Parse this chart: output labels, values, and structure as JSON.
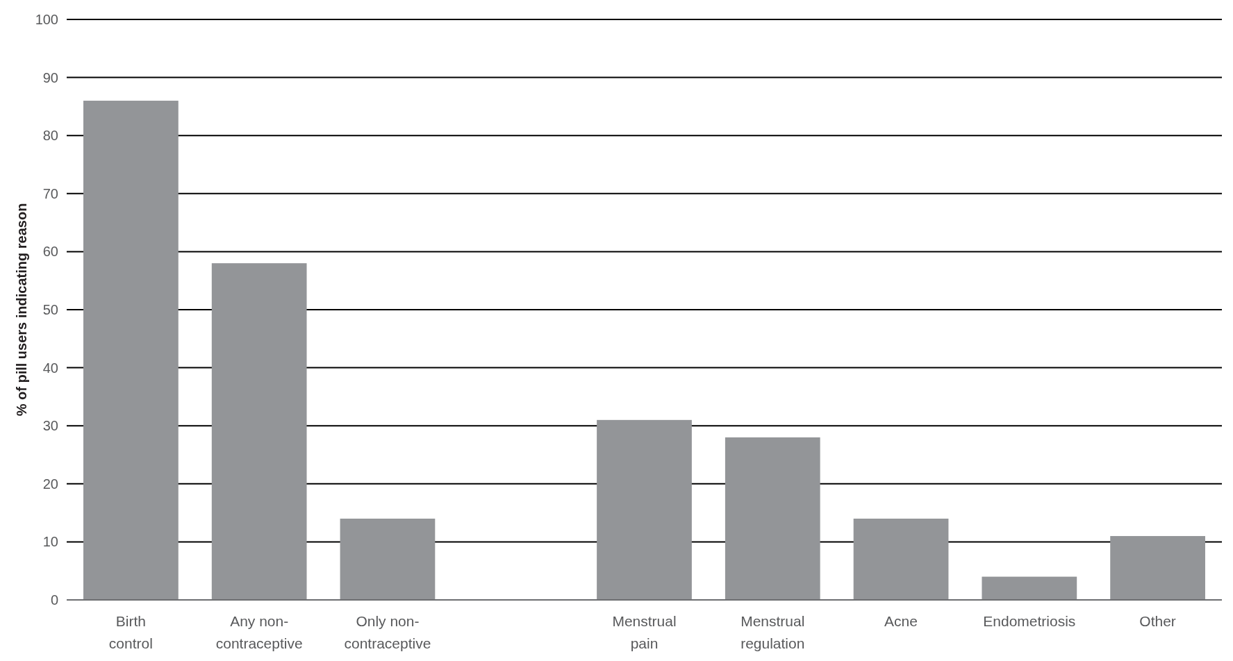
{
  "chart_data": {
    "type": "bar",
    "ylabel": "% of pill users indicating reason",
    "categories": [
      "Birth control",
      "Any non-contraceptive",
      "Only non-contraceptive",
      null,
      "Menstrual pain",
      "Menstrual regulation",
      "Acne",
      "Endometriosis",
      "Other"
    ],
    "values": [
      86,
      58,
      14,
      null,
      31,
      28,
      14,
      4,
      11
    ],
    "color": "#939598",
    "ylim": [
      0,
      100
    ],
    "yticks": [
      0,
      10,
      20,
      30,
      40,
      50,
      60,
      70,
      80,
      90,
      100
    ],
    "grid": "y"
  }
}
